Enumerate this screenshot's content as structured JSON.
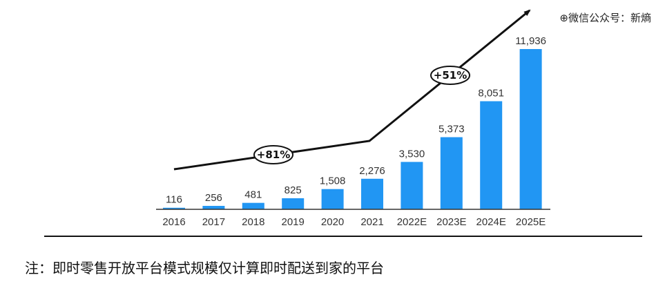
{
  "watermark": "⊕微信公众号：新熵",
  "footnote": "注：即时零售开放平台模式规模仅计算即时配送到家的平台",
  "chart_data": {
    "type": "bar",
    "title": "",
    "xlabel": "",
    "ylabel": "",
    "categories": [
      "2016",
      "2017",
      "2018",
      "2019",
      "2020",
      "2021",
      "2022E",
      "2023E",
      "2024E",
      "2025E"
    ],
    "values": [
      116,
      256,
      481,
      825,
      1508,
      2276,
      3530,
      5373,
      8051,
      11936
    ],
    "value_labels": [
      "116",
      "256",
      "481",
      "825",
      "1,508",
      "2,276",
      "3,530",
      "5,373",
      "8,051",
      "11,936"
    ],
    "ylim": [
      0,
      11936
    ],
    "bar_color": "#2196f3",
    "grid": false,
    "legend": "none",
    "annotations": [
      {
        "text": "+81%",
        "period": "2016-2021"
      },
      {
        "text": "+51%",
        "period": "2021-2025E"
      }
    ]
  }
}
